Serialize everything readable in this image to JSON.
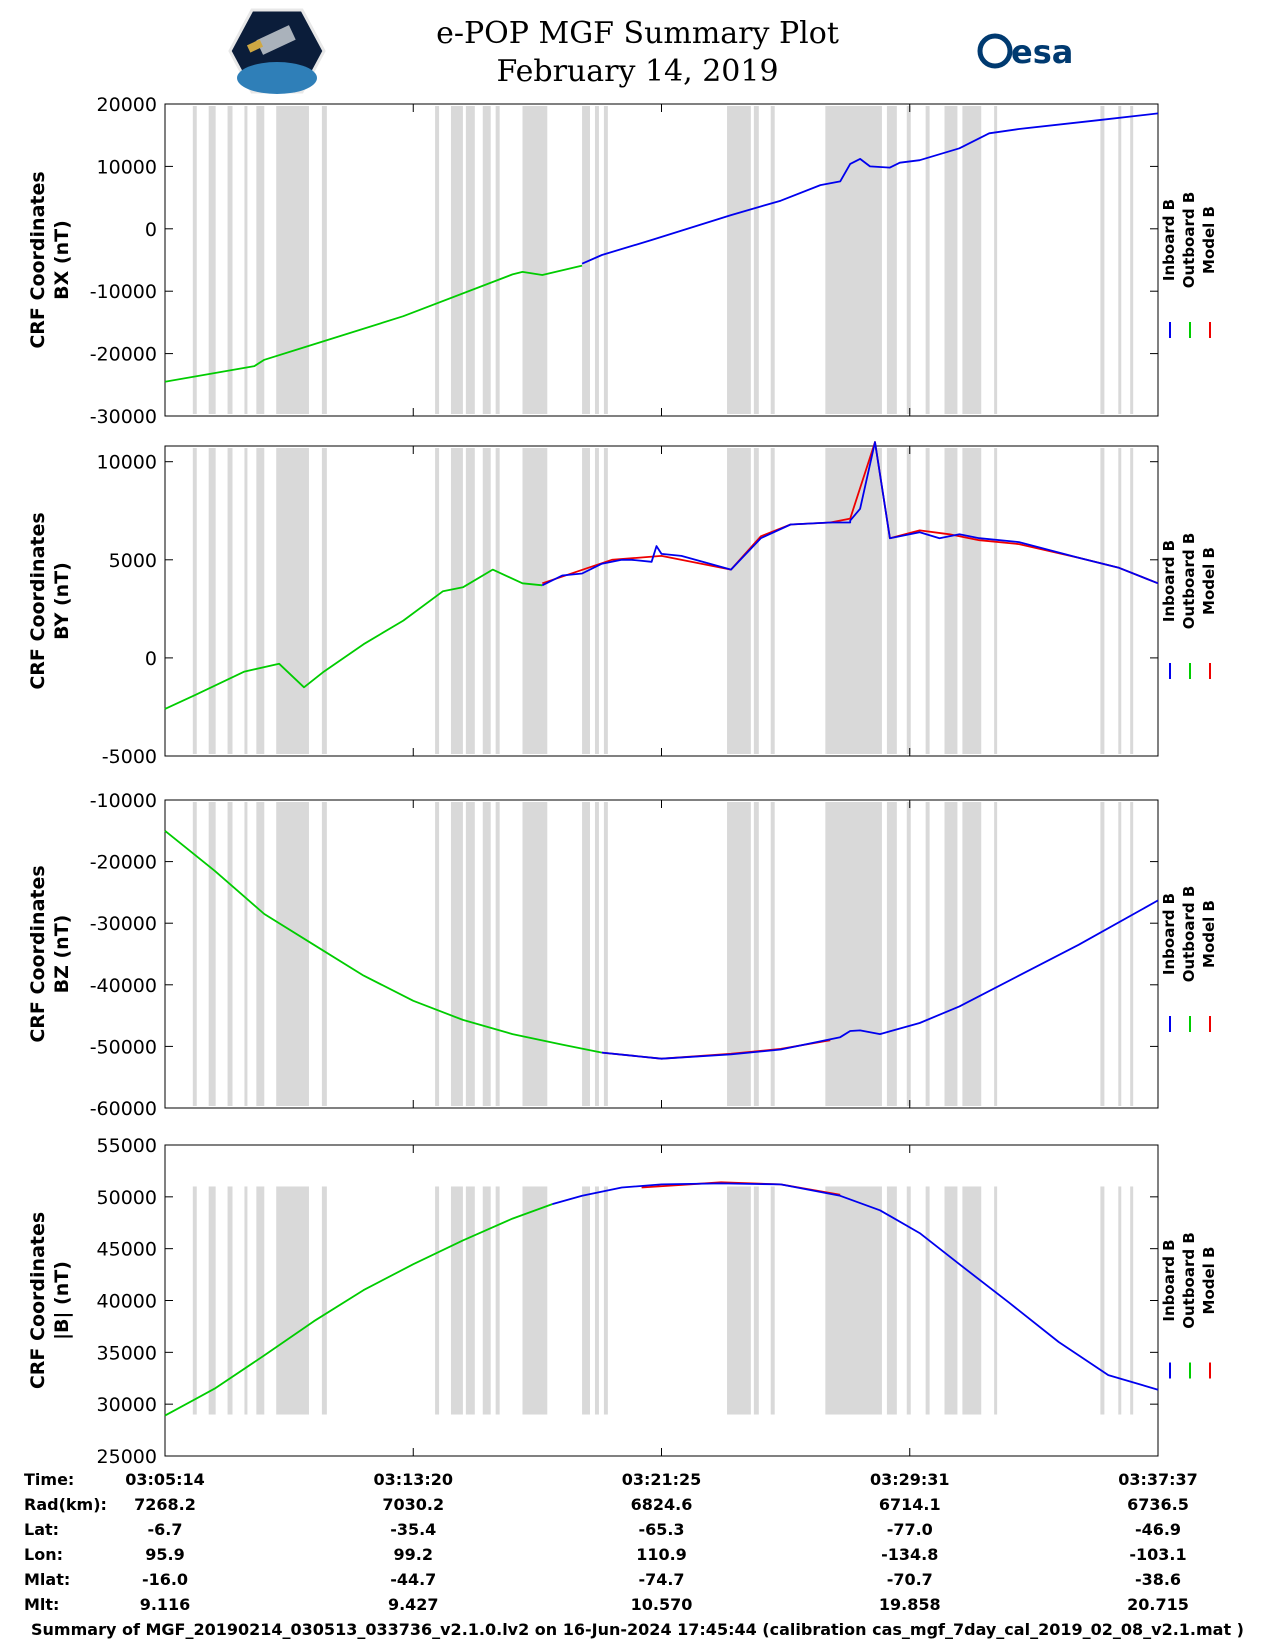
{
  "title": "e-POP MGF Summary Plot",
  "date": "February 14, 2019",
  "logos": {
    "left": "cassiope-mission-logo",
    "right": "esa"
  },
  "legend": [
    {
      "label": "Inboard B",
      "color": "#0000ee"
    },
    {
      "label": "Outboard B",
      "color": "#00cc00"
    },
    {
      "label": "Model B",
      "color": "#ee0000"
    }
  ],
  "gray_gap_color": "#d9d9d9",
  "chart_data": [
    {
      "type": "line",
      "ylabel_line1": "CRF Coordinates",
      "ylabel_line2": "BX (nT)",
      "ylim": [
        -30000,
        20000
      ],
      "yticks": [
        20000,
        10000,
        0,
        -10000,
        -20000,
        -30000
      ],
      "ytick_labels": [
        "20000",
        "10000",
        "0",
        "-10000",
        "-20000",
        "-30000"
      ],
      "series": [
        {
          "name": "Outboard B",
          "x": [
            0,
            0.09,
            0.1,
            0.14,
            0.24,
            0.35,
            0.36,
            0.38,
            0.42
          ],
          "values": [
            -24500,
            -22000,
            -21000,
            -19000,
            -14000,
            -7300,
            -6900,
            -7400,
            -5900
          ]
        },
        {
          "name": "Inboard B",
          "x": [
            0.42,
            0.44,
            0.49,
            0.57,
            0.62,
            0.66,
            0.68,
            0.69,
            0.7,
            0.71,
            0.73,
            0.74,
            0.76,
            0.8,
            0.83,
            0.86,
            0.94,
            1.0
          ],
          "values": [
            -5600,
            -4200,
            -1800,
            2200,
            4500,
            7000,
            7600,
            10400,
            11200,
            10000,
            9800,
            10600,
            11000,
            12900,
            15300,
            16000,
            17400,
            18500
          ]
        }
      ]
    },
    {
      "type": "line",
      "ylabel_line1": "CRF Coordinates",
      "ylabel_line2": "BY (nT)",
      "ylim": [
        -5000,
        10800
      ],
      "yticks": [
        10000,
        5000,
        0,
        -5000
      ],
      "ytick_labels": [
        "10000",
        "5000",
        "0",
        "-5000"
      ],
      "series": [
        {
          "name": "Outboard B",
          "x": [
            0,
            0.03,
            0.08,
            0.115,
            0.14,
            0.16,
            0.2,
            0.24,
            0.28,
            0.3,
            0.33,
            0.36,
            0.38
          ],
          "values": [
            -2600,
            -1900,
            -700,
            -300,
            -1500,
            -700,
            700,
            1900,
            3400,
            3600,
            4500,
            3800,
            3700
          ]
        },
        {
          "name": "Model B",
          "x": [
            0.38,
            0.45,
            0.5,
            0.57,
            0.6,
            0.63,
            0.67,
            0.69,
            0.715,
            0.73,
            0.76,
            0.79,
            0.82,
            0.86,
            0.92,
            0.96,
            1.0
          ],
          "values": [
            3800,
            5000,
            5200,
            4500,
            6200,
            6800,
            6900,
            7100,
            11000,
            6100,
            6500,
            6300,
            6000,
            5800,
            5100,
            4600,
            3800
          ]
        },
        {
          "name": "Inboard B",
          "x": [
            0.38,
            0.4,
            0.42,
            0.44,
            0.46,
            0.47,
            0.49,
            0.495,
            0.5,
            0.52,
            0.57,
            0.6,
            0.63,
            0.67,
            0.69,
            0.69,
            0.7,
            0.715,
            0.73,
            0.74,
            0.76,
            0.78,
            0.8,
            0.82,
            0.86,
            0.92,
            0.96,
            1.0
          ],
          "values": [
            3700,
            4200,
            4300,
            4800,
            5000,
            5000,
            4900,
            5700,
            5300,
            5200,
            4500,
            6100,
            6800,
            6900,
            6900,
            7000,
            7600,
            11000,
            6100,
            6200,
            6400,
            6100,
            6300,
            6100,
            5900,
            5100,
            4600,
            3800
          ]
        }
      ]
    },
    {
      "type": "line",
      "ylabel_line1": "CRF Coordinates",
      "ylabel_line2": "BZ (nT)",
      "ylim": [
        -60000,
        -10000
      ],
      "yticks": [
        -10000,
        -20000,
        -30000,
        -40000,
        -50000,
        -60000
      ],
      "ytick_labels": [
        "-10000",
        "-20000",
        "-30000",
        "-40000",
        "-50000",
        "-60000"
      ],
      "series": [
        {
          "name": "Outboard B",
          "x": [
            0,
            0.05,
            0.1,
            0.15,
            0.2,
            0.25,
            0.3,
            0.35,
            0.4,
            0.44
          ],
          "values": [
            -15000,
            -21500,
            -28500,
            -33500,
            -38500,
            -42600,
            -45700,
            -48000,
            -49700,
            -51000
          ]
        },
        {
          "name": "Model B",
          "x": [
            0.44,
            0.5,
            0.57,
            0.62,
            0.67
          ],
          "values": [
            -51000,
            -52000,
            -51200,
            -50400,
            -49000
          ]
        },
        {
          "name": "Inboard B",
          "x": [
            0.44,
            0.5,
            0.57,
            0.62,
            0.68,
            0.69,
            0.7,
            0.72,
            0.76,
            0.8,
            0.86,
            0.92,
            1.0
          ],
          "values": [
            -51000,
            -52000,
            -51300,
            -50500,
            -48500,
            -47500,
            -47400,
            -48000,
            -46200,
            -43500,
            -38500,
            -33500,
            -26300
          ]
        }
      ]
    },
    {
      "type": "line",
      "ylabel_line1": "CRF Coordinates",
      "ylabel_line2": "|B| (nT)",
      "ylim": [
        25000,
        55000
      ],
      "yticks": [
        55000,
        50000,
        45000,
        40000,
        35000,
        30000,
        25000
      ],
      "ytick_labels": [
        "55000",
        "50000",
        "45000",
        "40000",
        "35000",
        "30000",
        "25000"
      ],
      "series": [
        {
          "name": "Outboard B",
          "x": [
            0,
            0.05,
            0.1,
            0.15,
            0.2,
            0.25,
            0.3,
            0.35,
            0.39
          ],
          "values": [
            28900,
            31500,
            34700,
            38000,
            41000,
            43500,
            45800,
            47900,
            49300
          ]
        },
        {
          "name": "Model B",
          "x": [
            0.48,
            0.56,
            0.62,
            0.68
          ],
          "values": [
            50900,
            51400,
            51200,
            50200
          ]
        },
        {
          "name": "Inboard B",
          "x": [
            0.39,
            0.42,
            0.46,
            0.5,
            0.56,
            0.62,
            0.68,
            0.72,
            0.76,
            0.8,
            0.85,
            0.9,
            0.95,
            1.0
          ],
          "values": [
            49300,
            50100,
            50900,
            51200,
            51300,
            51200,
            50100,
            48700,
            46500,
            43500,
            39800,
            36000,
            32800,
            31400
          ]
        }
      ]
    }
  ],
  "gray_intervals": [
    [
      0.028,
      0.032
    ],
    [
      0.044,
      0.051
    ],
    [
      0.063,
      0.068
    ],
    [
      0.08,
      0.083
    ],
    [
      0.092,
      0.1
    ],
    [
      0.112,
      0.145
    ],
    [
      0.158,
      0.163
    ],
    [
      0.272,
      0.276
    ],
    [
      0.288,
      0.3
    ],
    [
      0.303,
      0.312
    ],
    [
      0.32,
      0.328
    ],
    [
      0.333,
      0.337
    ],
    [
      0.36,
      0.385
    ],
    [
      0.42,
      0.428
    ],
    [
      0.433,
      0.437
    ],
    [
      0.442,
      0.446
    ],
    [
      0.566,
      0.59
    ],
    [
      0.593,
      0.598
    ],
    [
      0.61,
      0.614
    ],
    [
      0.665,
      0.722
    ],
    [
      0.727,
      0.737
    ],
    [
      0.747,
      0.751
    ],
    [
      0.766,
      0.77
    ],
    [
      0.785,
      0.798
    ],
    [
      0.803,
      0.822
    ],
    [
      0.835,
      0.838
    ],
    [
      0.942,
      0.946
    ],
    [
      0.96,
      0.963
    ],
    [
      0.972,
      0.975
    ]
  ],
  "x_ticks": [
    0,
    0.25,
    0.5,
    0.75,
    1.0
  ],
  "orbit_table": {
    "row_labels": [
      "Time:",
      "Rad(km):",
      "Lat:",
      "Lon:",
      "Mlat:",
      "Mlt:"
    ],
    "columns": [
      [
        "03:05:14",
        "7268.2",
        "-6.7",
        "95.9",
        "-16.0",
        "9.116"
      ],
      [
        "03:13:20",
        "7030.2",
        "-35.4",
        "99.2",
        "-44.7",
        "9.427"
      ],
      [
        "03:21:25",
        "6824.6",
        "-65.3",
        "110.9",
        "-74.7",
        "10.570"
      ],
      [
        "03:29:31",
        "6714.1",
        "-77.0",
        "-134.8",
        "-70.7",
        "19.858"
      ],
      [
        "03:37:37",
        "6736.5",
        "-46.9",
        "-103.1",
        "-38.6",
        "20.715"
      ]
    ]
  },
  "footer": "Summary of MGF_20190214_030513_033736_v2.1.0.lv2 on 16-Jun-2024 17:45:44 (calibration cas_mgf_7day_cal_2019_02_08_v2.1.mat )"
}
